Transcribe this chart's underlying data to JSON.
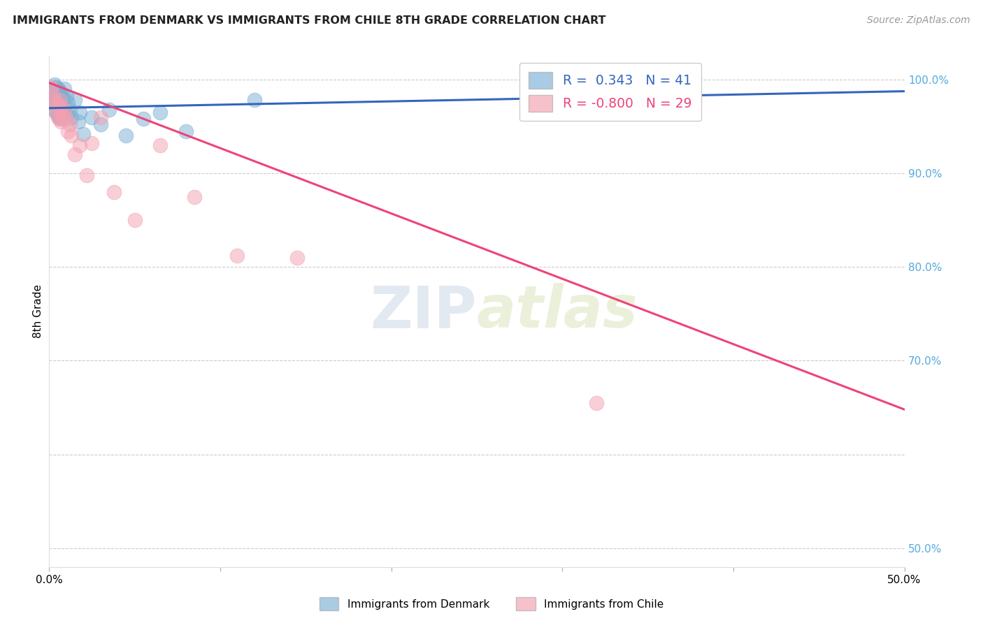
{
  "title": "IMMIGRANTS FROM DENMARK VS IMMIGRANTS FROM CHILE 8TH GRADE CORRELATION CHART",
  "source": "Source: ZipAtlas.com",
  "ylabel": "8th Grade",
  "xlim": [
    0.0,
    0.5
  ],
  "ylim": [
    0.48,
    1.025
  ],
  "x_ticks": [
    0.0,
    0.1,
    0.2,
    0.3,
    0.4,
    0.5
  ],
  "x_tick_labels": [
    "0.0%",
    "",
    "",
    "",
    "",
    "50.0%"
  ],
  "y_ticks_right": [
    0.5,
    0.6,
    0.7,
    0.8,
    0.9,
    1.0
  ],
  "y_tick_labels_right": [
    "50.0%",
    "",
    "70.0%",
    "80.0%",
    "90.0%",
    "100.0%"
  ],
  "denmark_R": 0.343,
  "denmark_N": 41,
  "chile_R": -0.8,
  "chile_N": 29,
  "denmark_color": "#7BAFD4",
  "chile_color": "#F4A0B0",
  "denmark_line_color": "#3366BB",
  "chile_line_color": "#EE4477",
  "watermark_zip": "ZIP",
  "watermark_atlas": "atlas",
  "denmark_x": [
    0.001,
    0.002,
    0.002,
    0.003,
    0.003,
    0.003,
    0.004,
    0.004,
    0.004,
    0.005,
    0.005,
    0.005,
    0.006,
    0.006,
    0.006,
    0.007,
    0.007,
    0.007,
    0.008,
    0.008,
    0.009,
    0.009,
    0.01,
    0.01,
    0.011,
    0.012,
    0.013,
    0.015,
    0.017,
    0.018,
    0.02,
    0.025,
    0.03,
    0.035,
    0.045,
    0.055,
    0.065,
    0.08,
    0.12,
    0.28,
    0.34
  ],
  "denmark_y": [
    0.985,
    0.99,
    0.975,
    0.995,
    0.982,
    0.968,
    0.992,
    0.978,
    0.965,
    0.99,
    0.978,
    0.962,
    0.988,
    0.975,
    0.96,
    0.985,
    0.972,
    0.958,
    0.98,
    0.965,
    0.99,
    0.968,
    0.982,
    0.962,
    0.975,
    0.968,
    0.96,
    0.978,
    0.955,
    0.965,
    0.942,
    0.96,
    0.952,
    0.968,
    0.94,
    0.958,
    0.965,
    0.945,
    0.978,
    0.982,
    0.992
  ],
  "chile_x": [
    0.001,
    0.002,
    0.003,
    0.003,
    0.004,
    0.005,
    0.005,
    0.006,
    0.006,
    0.007,
    0.007,
    0.008,
    0.009,
    0.01,
    0.011,
    0.012,
    0.013,
    0.015,
    0.018,
    0.022,
    0.025,
    0.03,
    0.038,
    0.05,
    0.065,
    0.085,
    0.11,
    0.145,
    0.32
  ],
  "chile_y": [
    0.992,
    0.985,
    0.978,
    0.968,
    0.975,
    0.97,
    0.96,
    0.978,
    0.958,
    0.972,
    0.955,
    0.962,
    0.968,
    0.958,
    0.945,
    0.952,
    0.94,
    0.92,
    0.93,
    0.898,
    0.932,
    0.96,
    0.88,
    0.85,
    0.93,
    0.875,
    0.812,
    0.81,
    0.655
  ],
  "denmark_trendline": [
    0.9695,
    0.9875
  ],
  "chile_trendline": [
    0.9965,
    0.648
  ]
}
